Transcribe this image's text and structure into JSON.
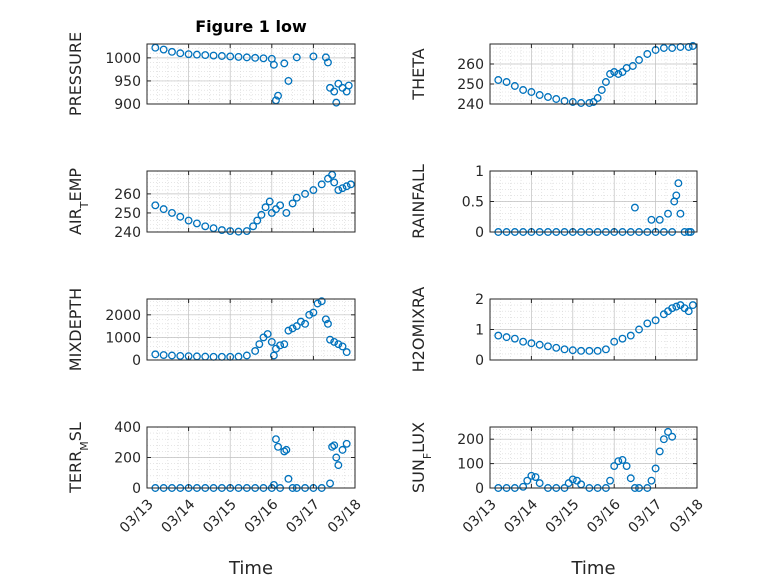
{
  "chart_data": [
    {
      "type": "scatter",
      "title": "Figure 1 low",
      "ylabel": "PRESSURE",
      "ylim": [
        900,
        1030
      ],
      "yticks": [
        "900",
        "950",
        "1000"
      ],
      "ytickvals": [
        900,
        950,
        1000
      ],
      "xlim": [
        0,
        5
      ],
      "xticks": [],
      "xlabel": "",
      "color": "#0072BD",
      "points": [
        [
          0.2,
          1022
        ],
        [
          0.4,
          1018
        ],
        [
          0.6,
          1013
        ],
        [
          0.8,
          1010
        ],
        [
          1.0,
          1008
        ],
        [
          1.2,
          1007
        ],
        [
          1.4,
          1006
        ],
        [
          1.6,
          1005
        ],
        [
          1.8,
          1004
        ],
        [
          2.0,
          1003
        ],
        [
          2.2,
          1002
        ],
        [
          2.4,
          1001
        ],
        [
          2.6,
          1000
        ],
        [
          2.8,
          999
        ],
        [
          3.0,
          998
        ],
        [
          3.05,
          985
        ],
        [
          3.1,
          908
        ],
        [
          3.15,
          918
        ],
        [
          3.3,
          988
        ],
        [
          3.4,
          950
        ],
        [
          3.6,
          1001
        ],
        [
          4.0,
          1003
        ],
        [
          4.3,
          1001
        ],
        [
          4.35,
          990
        ],
        [
          4.4,
          935
        ],
        [
          4.5,
          927
        ],
        [
          4.55,
          903
        ],
        [
          4.6,
          944
        ],
        [
          4.7,
          935
        ],
        [
          4.8,
          927
        ],
        [
          4.85,
          940
        ]
      ]
    },
    {
      "type": "scatter",
      "title": "",
      "ylabel": "THETA",
      "ylim": [
        240,
        270
      ],
      "yticks": [
        "240",
        "250",
        "260"
      ],
      "ytickvals": [
        240,
        250,
        260
      ],
      "xlim": [
        0,
        5
      ],
      "xticks": [],
      "xlabel": "",
      "color": "#0072BD",
      "points": [
        [
          0.2,
          252
        ],
        [
          0.4,
          251
        ],
        [
          0.6,
          249
        ],
        [
          0.8,
          247
        ],
        [
          1.0,
          246
        ],
        [
          1.2,
          244.5
        ],
        [
          1.4,
          243.5
        ],
        [
          1.6,
          242.5
        ],
        [
          1.8,
          241.5
        ],
        [
          2.0,
          241
        ],
        [
          2.2,
          240.5
        ],
        [
          2.4,
          240.5
        ],
        [
          2.5,
          241
        ],
        [
          2.6,
          243
        ],
        [
          2.7,
          247
        ],
        [
          2.8,
          251
        ],
        [
          2.9,
          255
        ],
        [
          3.0,
          256
        ],
        [
          3.1,
          255
        ],
        [
          3.2,
          256
        ],
        [
          3.3,
          258
        ],
        [
          3.45,
          259
        ],
        [
          3.6,
          262
        ],
        [
          3.8,
          265
        ],
        [
          4.0,
          267
        ],
        [
          4.2,
          268
        ],
        [
          4.4,
          268
        ],
        [
          4.6,
          268.5
        ],
        [
          4.8,
          268.5
        ],
        [
          4.9,
          269
        ]
      ]
    },
    {
      "type": "scatter",
      "title": "",
      "ylabel": "AIR_TEMP",
      "ylim": [
        240,
        272
      ],
      "yticks": [
        "240",
        "250",
        "260"
      ],
      "ytickvals": [
        240,
        250,
        260
      ],
      "xlim": [
        0,
        5
      ],
      "xticks": [],
      "xlabel": "",
      "color": "#0072BD",
      "points": [
        [
          0.2,
          254
        ],
        [
          0.4,
          252
        ],
        [
          0.6,
          250
        ],
        [
          0.8,
          248
        ],
        [
          1.0,
          246
        ],
        [
          1.2,
          244.5
        ],
        [
          1.4,
          243
        ],
        [
          1.6,
          242
        ],
        [
          1.8,
          241
        ],
        [
          2.0,
          240.5
        ],
        [
          2.2,
          240.2
        ],
        [
          2.4,
          240.5
        ],
        [
          2.55,
          243
        ],
        [
          2.65,
          246
        ],
        [
          2.75,
          249
        ],
        [
          2.85,
          253
        ],
        [
          2.95,
          256
        ],
        [
          3.0,
          250
        ],
        [
          3.1,
          252
        ],
        [
          3.2,
          254
        ],
        [
          3.35,
          250
        ],
        [
          3.5,
          255
        ],
        [
          3.6,
          258
        ],
        [
          3.8,
          260
        ],
        [
          4.0,
          262
        ],
        [
          4.2,
          265
        ],
        [
          4.35,
          268
        ],
        [
          4.45,
          270
        ],
        [
          4.5,
          266
        ],
        [
          4.6,
          262
        ],
        [
          4.7,
          263
        ],
        [
          4.8,
          264
        ],
        [
          4.9,
          265
        ]
      ]
    },
    {
      "type": "scatter",
      "title": "",
      "ylabel": "RAINFALL",
      "ylim": [
        0,
        1
      ],
      "yticks": [
        "0",
        "0.5",
        "1"
      ],
      "ytickvals": [
        0,
        0.5,
        1
      ],
      "xlim": [
        0,
        5
      ],
      "xticks": [],
      "xlabel": "",
      "color": "#0072BD",
      "points": [
        [
          0.2,
          0
        ],
        [
          0.4,
          0
        ],
        [
          0.6,
          0
        ],
        [
          0.8,
          0
        ],
        [
          1.0,
          0
        ],
        [
          1.2,
          0
        ],
        [
          1.4,
          0
        ],
        [
          1.6,
          0
        ],
        [
          1.8,
          0
        ],
        [
          2.0,
          0
        ],
        [
          2.2,
          0
        ],
        [
          2.4,
          0
        ],
        [
          2.6,
          0
        ],
        [
          2.8,
          0
        ],
        [
          3.0,
          0
        ],
        [
          3.2,
          0
        ],
        [
          3.4,
          0
        ],
        [
          3.5,
          0.4
        ],
        [
          3.6,
          0
        ],
        [
          3.8,
          0
        ],
        [
          3.9,
          0.2
        ],
        [
          4.0,
          0
        ],
        [
          4.1,
          0.2
        ],
        [
          4.2,
          0
        ],
        [
          4.3,
          0.3
        ],
        [
          4.4,
          0
        ],
        [
          4.45,
          0.5
        ],
        [
          4.5,
          0.6
        ],
        [
          4.55,
          0.8
        ],
        [
          4.6,
          0.3
        ],
        [
          4.7,
          0
        ],
        [
          4.8,
          0
        ],
        [
          4.85,
          0
        ]
      ]
    },
    {
      "type": "scatter",
      "title": "",
      "ylabel": "MIXDEPTH",
      "ylim": [
        0,
        2700
      ],
      "yticks": [
        "0",
        "1000",
        "2000"
      ],
      "ytickvals": [
        0,
        1000,
        2000
      ],
      "xlim": [
        0,
        5
      ],
      "xticks": [],
      "xlabel": "",
      "color": "#0072BD",
      "points": [
        [
          0.2,
          250
        ],
        [
          0.4,
          220
        ],
        [
          0.6,
          200
        ],
        [
          0.8,
          180
        ],
        [
          1.0,
          170
        ],
        [
          1.2,
          160
        ],
        [
          1.4,
          150
        ],
        [
          1.6,
          140
        ],
        [
          1.8,
          140
        ],
        [
          2.0,
          140
        ],
        [
          2.2,
          150
        ],
        [
          2.4,
          200
        ],
        [
          2.6,
          400
        ],
        [
          2.7,
          700
        ],
        [
          2.8,
          1000
        ],
        [
          2.9,
          1150
        ],
        [
          3.0,
          800
        ],
        [
          3.05,
          200
        ],
        [
          3.1,
          500
        ],
        [
          3.2,
          650
        ],
        [
          3.3,
          700
        ],
        [
          3.4,
          1300
        ],
        [
          3.5,
          1400
        ],
        [
          3.6,
          1500
        ],
        [
          3.7,
          1700
        ],
        [
          3.8,
          1600
        ],
        [
          3.9,
          2000
        ],
        [
          4.0,
          2100
        ],
        [
          4.1,
          2500
        ],
        [
          4.2,
          2600
        ],
        [
          4.3,
          1800
        ],
        [
          4.35,
          1600
        ],
        [
          4.4,
          900
        ],
        [
          4.5,
          800
        ],
        [
          4.6,
          700
        ],
        [
          4.7,
          600
        ],
        [
          4.8,
          350
        ]
      ]
    },
    {
      "type": "scatter",
      "title": "",
      "ylabel": "H2OMIXRA",
      "ylim": [
        0,
        2
      ],
      "yticks": [
        "0",
        "1",
        "2"
      ],
      "ytickvals": [
        0,
        1,
        2
      ],
      "xlim": [
        0,
        5
      ],
      "xticks": [],
      "xlabel": "",
      "color": "#0072BD",
      "points": [
        [
          0.2,
          0.8
        ],
        [
          0.4,
          0.75
        ],
        [
          0.6,
          0.7
        ],
        [
          0.8,
          0.6
        ],
        [
          1.0,
          0.55
        ],
        [
          1.2,
          0.5
        ],
        [
          1.4,
          0.45
        ],
        [
          1.6,
          0.4
        ],
        [
          1.8,
          0.35
        ],
        [
          2.0,
          0.32
        ],
        [
          2.2,
          0.3
        ],
        [
          2.4,
          0.3
        ],
        [
          2.6,
          0.3
        ],
        [
          2.8,
          0.35
        ],
        [
          3.0,
          0.6
        ],
        [
          3.2,
          0.7
        ],
        [
          3.4,
          0.8
        ],
        [
          3.6,
          1.0
        ],
        [
          3.8,
          1.2
        ],
        [
          4.0,
          1.3
        ],
        [
          4.2,
          1.5
        ],
        [
          4.3,
          1.6
        ],
        [
          4.4,
          1.7
        ],
        [
          4.5,
          1.75
        ],
        [
          4.6,
          1.8
        ],
        [
          4.7,
          1.7
        ],
        [
          4.8,
          1.6
        ],
        [
          4.9,
          1.8
        ]
      ]
    },
    {
      "type": "scatter",
      "title": "",
      "ylabel": "TERR_MSL",
      "ylim": [
        0,
        400
      ],
      "yticks": [
        "0",
        "200",
        "400"
      ],
      "ytickvals": [
        0,
        200,
        400
      ],
      "xlim": [
        0,
        5
      ],
      "xticks": [
        "03/13",
        "03/14",
        "03/15",
        "03/16",
        "03/17",
        "03/18"
      ],
      "xtickvals": [
        0,
        1,
        2,
        3,
        4,
        5
      ],
      "xlabel": "Time",
      "color": "#0072BD",
      "points": [
        [
          0.2,
          0
        ],
        [
          0.4,
          0
        ],
        [
          0.6,
          0
        ],
        [
          0.8,
          0
        ],
        [
          1.0,
          0
        ],
        [
          1.2,
          0
        ],
        [
          1.4,
          0
        ],
        [
          1.6,
          0
        ],
        [
          1.8,
          0
        ],
        [
          2.0,
          0
        ],
        [
          2.2,
          0
        ],
        [
          2.4,
          0
        ],
        [
          2.6,
          0
        ],
        [
          2.8,
          0
        ],
        [
          3.0,
          0
        ],
        [
          3.05,
          20
        ],
        [
          3.1,
          320
        ],
        [
          3.15,
          270
        ],
        [
          3.2,
          0
        ],
        [
          3.3,
          240
        ],
        [
          3.35,
          250
        ],
        [
          3.4,
          60
        ],
        [
          3.5,
          0
        ],
        [
          3.6,
          0
        ],
        [
          3.8,
          0
        ],
        [
          4.0,
          0
        ],
        [
          4.2,
          0
        ],
        [
          4.4,
          30
        ],
        [
          4.45,
          270
        ],
        [
          4.5,
          280
        ],
        [
          4.55,
          200
        ],
        [
          4.6,
          150
        ],
        [
          4.7,
          250
        ],
        [
          4.8,
          290
        ]
      ]
    },
    {
      "type": "scatter",
      "title": "",
      "ylabel": "SUN_FLUX",
      "ylim": [
        0,
        250
      ],
      "yticks": [
        "0",
        "100",
        "200"
      ],
      "ytickvals": [
        0,
        100,
        200
      ],
      "xlim": [
        0,
        5
      ],
      "xticks": [
        "03/13",
        "03/14",
        "03/15",
        "03/16",
        "03/17",
        "03/18"
      ],
      "xtickvals": [
        0,
        1,
        2,
        3,
        4,
        5
      ],
      "xlabel": "Time",
      "color": "#0072BD",
      "points": [
        [
          0.2,
          0
        ],
        [
          0.4,
          0
        ],
        [
          0.6,
          0
        ],
        [
          0.8,
          5
        ],
        [
          0.9,
          30
        ],
        [
          1.0,
          50
        ],
        [
          1.1,
          45
        ],
        [
          1.2,
          20
        ],
        [
          1.4,
          0
        ],
        [
          1.6,
          0
        ],
        [
          1.8,
          0
        ],
        [
          1.9,
          20
        ],
        [
          2.0,
          35
        ],
        [
          2.1,
          30
        ],
        [
          2.2,
          15
        ],
        [
          2.4,
          0
        ],
        [
          2.6,
          0
        ],
        [
          2.8,
          0
        ],
        [
          2.9,
          30
        ],
        [
          3.0,
          90
        ],
        [
          3.1,
          110
        ],
        [
          3.2,
          115
        ],
        [
          3.3,
          90
        ],
        [
          3.4,
          40
        ],
        [
          3.5,
          0
        ],
        [
          3.6,
          0
        ],
        [
          3.8,
          0
        ],
        [
          3.9,
          30
        ],
        [
          4.0,
          80
        ],
        [
          4.1,
          150
        ],
        [
          4.2,
          200
        ],
        [
          4.3,
          230
        ],
        [
          4.4,
          210
        ]
      ]
    }
  ]
}
